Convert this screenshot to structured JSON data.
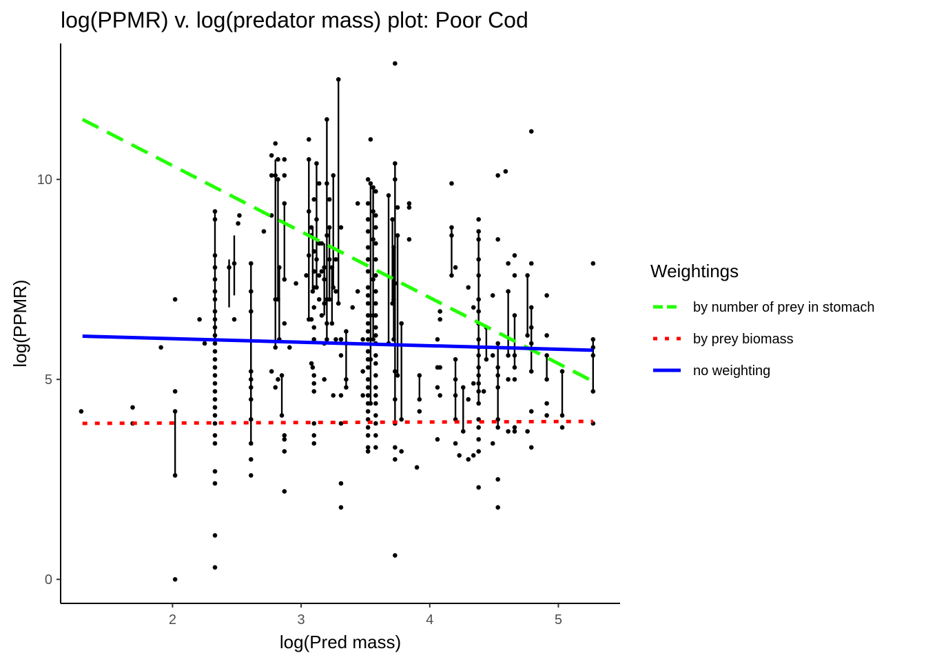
{
  "chart_data": {
    "type": "scatter",
    "title": "log(PPMR) v. log(predator mass) plot: Poor Cod",
    "xlabel": "log(Pred mass)",
    "ylabel": "log(PPMR)",
    "xlim": [
      1.13,
      5.48
    ],
    "ylim": [
      -0.6,
      13.4
    ],
    "x_ticks": [
      2,
      3,
      4,
      5
    ],
    "y_ticks": [
      0,
      5,
      10
    ],
    "grid": false,
    "legend": {
      "title": "Weightings",
      "position": "right",
      "entries": [
        {
          "name": "by number of prey in stomach",
          "color": "#22ff00",
          "dash": "dashed"
        },
        {
          "name": "by prey biomass",
          "color": "#ff0000",
          "dash": "dotted"
        },
        {
          "name": "no weighting",
          "color": "#0000ff",
          "dash": "solid"
        }
      ]
    },
    "lines": [
      {
        "name": "by number of prey in stomach",
        "color": "#22ff00",
        "dash": "dashed",
        "x": [
          1.3,
          5.27
        ],
        "y": [
          11.5,
          4.95
        ]
      },
      {
        "name": "by prey biomass",
        "color": "#ff0000",
        "dash": "dotted",
        "x": [
          1.3,
          5.27
        ],
        "y": [
          3.9,
          3.95
        ]
      },
      {
        "name": "no weighting",
        "color": "#0000ff",
        "dash": "solid",
        "x": [
          1.3,
          5.27
        ],
        "y": [
          6.08,
          5.73
        ]
      }
    ],
    "segments": [
      [
        2.02,
        2.6,
        4.2
      ],
      [
        2.33,
        6.0,
        9.2
      ],
      [
        2.44,
        6.8,
        8.0
      ],
      [
        2.48,
        7.1,
        8.6
      ],
      [
        2.61,
        3.4,
        7.9
      ],
      [
        2.61,
        4.0,
        7.2
      ],
      [
        2.8,
        5.8,
        10.5
      ],
      [
        2.82,
        7.0,
        10.0
      ],
      [
        2.85,
        4.1,
        5.1
      ],
      [
        2.83,
        6.0,
        7.8
      ],
      [
        2.87,
        7.5,
        9.4
      ],
      [
        3.06,
        6.5,
        10.5
      ],
      [
        3.09,
        7.2,
        8.8
      ],
      [
        3.12,
        7.3,
        10.4
      ],
      [
        3.18,
        6.6,
        8.4
      ],
      [
        3.2,
        6.0,
        11.5
      ],
      [
        3.22,
        7.0,
        8.8
      ],
      [
        3.24,
        6.4,
        7.8
      ],
      [
        3.25,
        7.3,
        10.1
      ],
      [
        3.29,
        6.9,
        12.5
      ],
      [
        3.35,
        4.8,
        6.2
      ],
      [
        3.54,
        4.4,
        9.9
      ],
      [
        3.56,
        6.0,
        9.8
      ],
      [
        3.68,
        5.9,
        9.6
      ],
      [
        3.72,
        6.0,
        8.3
      ],
      [
        3.73,
        3.9,
        10.4
      ],
      [
        3.75,
        5.1,
        8.6
      ],
      [
        3.71,
        6.9,
        9.0
      ],
      [
        3.78,
        4.0,
        6.4
      ],
      [
        3.92,
        4.5,
        5.1
      ],
      [
        4.17,
        7.6,
        8.8
      ],
      [
        4.2,
        4.0,
        5.5
      ],
      [
        4.26,
        3.7,
        4.8
      ],
      [
        4.38,
        5.6,
        8.7
      ],
      [
        4.38,
        4.4,
        6.0
      ],
      [
        4.44,
        5.5,
        6.3
      ],
      [
        4.53,
        3.8,
        5.9
      ],
      [
        4.61,
        5.6,
        7.2
      ],
      [
        4.66,
        5.3,
        6.6
      ],
      [
        4.76,
        6.1,
        7.6
      ],
      [
        4.79,
        5.2,
        6.8
      ],
      [
        4.91,
        5.0,
        5.6
      ],
      [
        5.03,
        4.1,
        5.2
      ],
      [
        5.27,
        4.7,
        6.0
      ]
    ],
    "points": [
      [
        1.29,
        4.2
      ],
      [
        1.69,
        4.3
      ],
      [
        1.69,
        3.9
      ],
      [
        1.91,
        5.8
      ],
      [
        2.02,
        0.0
      ],
      [
        2.02,
        2.6
      ],
      [
        2.02,
        4.2
      ],
      [
        2.02,
        4.7
      ],
      [
        2.02,
        7.0
      ],
      [
        2.21,
        6.5
      ],
      [
        2.25,
        5.9
      ],
      [
        2.33,
        0.3
      ],
      [
        2.33,
        1.1
      ],
      [
        2.33,
        2.4
      ],
      [
        2.33,
        2.7
      ],
      [
        2.33,
        3.4
      ],
      [
        2.33,
        3.6
      ],
      [
        2.33,
        3.9
      ],
      [
        2.33,
        4.1
      ],
      [
        2.33,
        4.3
      ],
      [
        2.33,
        4.5
      ],
      [
        2.33,
        4.7
      ],
      [
        2.33,
        4.9
      ],
      [
        2.33,
        5.1
      ],
      [
        2.33,
        5.3
      ],
      [
        2.33,
        5.5
      ],
      [
        2.33,
        5.7
      ],
      [
        2.33,
        5.9
      ],
      [
        2.33,
        6.1
      ],
      [
        2.33,
        6.3
      ],
      [
        2.33,
        6.5
      ],
      [
        2.33,
        6.7
      ],
      [
        2.33,
        7.0
      ],
      [
        2.33,
        7.2
      ],
      [
        2.33,
        7.5
      ],
      [
        2.33,
        7.8
      ],
      [
        2.33,
        8.1
      ],
      [
        2.33,
        9.0
      ],
      [
        2.33,
        9.2
      ],
      [
        2.44,
        7.8
      ],
      [
        2.48,
        6.5
      ],
      [
        2.48,
        7.9
      ],
      [
        2.51,
        8.9
      ],
      [
        2.52,
        9.1
      ],
      [
        2.61,
        2.6
      ],
      [
        2.61,
        3.0
      ],
      [
        2.61,
        3.4
      ],
      [
        2.61,
        4.0
      ],
      [
        2.61,
        4.5
      ],
      [
        2.61,
        4.8
      ],
      [
        2.61,
        5.0
      ],
      [
        2.61,
        5.2
      ],
      [
        2.61,
        6.7
      ],
      [
        2.61,
        7.2
      ],
      [
        2.61,
        7.9
      ],
      [
        2.71,
        8.7
      ],
      [
        2.77,
        5.2
      ],
      [
        2.77,
        9.1
      ],
      [
        2.77,
        10.1
      ],
      [
        2.77,
        10.6
      ],
      [
        2.8,
        4.8
      ],
      [
        2.8,
        5.8
      ],
      [
        2.8,
        7.0
      ],
      [
        2.8,
        10.1
      ],
      [
        2.8,
        10.9
      ],
      [
        2.82,
        5.0
      ],
      [
        2.82,
        7.0
      ],
      [
        2.82,
        10.0
      ],
      [
        2.82,
        10.5
      ],
      [
        2.83,
        6.0
      ],
      [
        2.83,
        7.8
      ],
      [
        2.85,
        4.1
      ],
      [
        2.85,
        5.1
      ],
      [
        2.87,
        2.2
      ],
      [
        2.87,
        3.2
      ],
      [
        2.87,
        3.5
      ],
      [
        2.87,
        3.6
      ],
      [
        2.87,
        6.4
      ],
      [
        2.87,
        7.5
      ],
      [
        2.87,
        9.4
      ],
      [
        2.87,
        10.1
      ],
      [
        2.87,
        10.5
      ],
      [
        2.91,
        5.8
      ],
      [
        2.96,
        7.4
      ],
      [
        3.04,
        7.6
      ],
      [
        3.06,
        6.5
      ],
      [
        3.06,
        8.1
      ],
      [
        3.06,
        9.2
      ],
      [
        3.06,
        10.5
      ],
      [
        3.06,
        11.0
      ],
      [
        3.08,
        5.4
      ],
      [
        3.08,
        6.5
      ],
      [
        3.08,
        8.6
      ],
      [
        3.08,
        8.8
      ],
      [
        3.09,
        5.3
      ],
      [
        3.09,
        7.2
      ],
      [
        3.1,
        3.4
      ],
      [
        3.1,
        3.6
      ],
      [
        3.1,
        3.9
      ],
      [
        3.1,
        4.7
      ],
      [
        3.1,
        4.9
      ],
      [
        3.1,
        5.1
      ],
      [
        3.1,
        6.0
      ],
      [
        3.1,
        6.3
      ],
      [
        3.1,
        6.8
      ],
      [
        3.1,
        7.3
      ],
      [
        3.1,
        7.7
      ],
      [
        3.1,
        8.2
      ],
      [
        3.1,
        9.5
      ],
      [
        3.12,
        7.3
      ],
      [
        3.12,
        8.0
      ],
      [
        3.12,
        9.0
      ],
      [
        3.12,
        10.4
      ],
      [
        3.14,
        7.0
      ],
      [
        3.14,
        7.6
      ],
      [
        3.14,
        8.4
      ],
      [
        3.14,
        9.9
      ],
      [
        3.16,
        6.6
      ],
      [
        3.16,
        7.7
      ],
      [
        3.16,
        8.4
      ],
      [
        3.18,
        5.0
      ],
      [
        3.18,
        5.9
      ],
      [
        3.18,
        6.9
      ],
      [
        3.18,
        7.5
      ],
      [
        3.18,
        7.8
      ],
      [
        3.2,
        6.0
      ],
      [
        3.2,
        6.4
      ],
      [
        3.2,
        7.0
      ],
      [
        3.2,
        8.6
      ],
      [
        3.2,
        9.9
      ],
      [
        3.2,
        11.5
      ],
      [
        3.22,
        7.0
      ],
      [
        3.22,
        8.0
      ],
      [
        3.22,
        8.8
      ],
      [
        3.22,
        9.5
      ],
      [
        3.24,
        6.4
      ],
      [
        3.24,
        7.8
      ],
      [
        3.25,
        4.6
      ],
      [
        3.25,
        7.3
      ],
      [
        3.25,
        10.1
      ],
      [
        3.27,
        6.0
      ],
      [
        3.27,
        7.2
      ],
      [
        3.27,
        8.0
      ],
      [
        3.29,
        6.9
      ],
      [
        3.29,
        12.5
      ],
      [
        3.31,
        1.8
      ],
      [
        3.31,
        2.4
      ],
      [
        3.31,
        3.9
      ],
      [
        3.31,
        4.6
      ],
      [
        3.31,
        5.6
      ],
      [
        3.31,
        6.0
      ],
      [
        3.31,
        8.8
      ],
      [
        3.35,
        4.8
      ],
      [
        3.35,
        5.0
      ],
      [
        3.35,
        5.9
      ],
      [
        3.35,
        6.2
      ],
      [
        3.4,
        6.8
      ],
      [
        3.44,
        7.2
      ],
      [
        3.44,
        9.4
      ],
      [
        3.48,
        4.6
      ],
      [
        3.48,
        5.2
      ],
      [
        3.48,
        6.0
      ],
      [
        3.52,
        3.2
      ],
      [
        3.52,
        3.3
      ],
      [
        3.52,
        3.6
      ],
      [
        3.52,
        3.8
      ],
      [
        3.52,
        4.0
      ],
      [
        3.52,
        4.2
      ],
      [
        3.52,
        4.4
      ],
      [
        3.52,
        4.6
      ],
      [
        3.52,
        4.8
      ],
      [
        3.52,
        5.0
      ],
      [
        3.52,
        5.3
      ],
      [
        3.52,
        5.5
      ],
      [
        3.52,
        5.7
      ],
      [
        3.52,
        6.0
      ],
      [
        3.52,
        6.2
      ],
      [
        3.52,
        6.4
      ],
      [
        3.52,
        6.6
      ],
      [
        3.52,
        6.9
      ],
      [
        3.52,
        7.1
      ],
      [
        3.52,
        7.3
      ],
      [
        3.52,
        7.7
      ],
      [
        3.52,
        8.0
      ],
      [
        3.52,
        8.3
      ],
      [
        3.52,
        8.7
      ],
      [
        3.52,
        9.0
      ],
      [
        3.52,
        9.4
      ],
      [
        3.52,
        10.0
      ],
      [
        3.54,
        4.4
      ],
      [
        3.54,
        5.5
      ],
      [
        3.54,
        9.9
      ],
      [
        3.54,
        11.0
      ],
      [
        3.56,
        6.0
      ],
      [
        3.56,
        6.6
      ],
      [
        3.56,
        7.5
      ],
      [
        3.56,
        8.5
      ],
      [
        3.56,
        9.2
      ],
      [
        3.56,
        9.8
      ],
      [
        3.58,
        3.3
      ],
      [
        3.58,
        3.6
      ],
      [
        3.58,
        3.9
      ],
      [
        3.58,
        4.1
      ],
      [
        3.58,
        4.4
      ],
      [
        3.58,
        4.6
      ],
      [
        3.58,
        4.8
      ],
      [
        3.58,
        5.1
      ],
      [
        3.58,
        5.4
      ],
      [
        3.58,
        5.6
      ],
      [
        3.58,
        5.9
      ],
      [
        3.58,
        6.1
      ],
      [
        3.58,
        6.3
      ],
      [
        3.58,
        6.6
      ],
      [
        3.58,
        6.9
      ],
      [
        3.58,
        7.2
      ],
      [
        3.58,
        7.6
      ],
      [
        3.58,
        8.0
      ],
      [
        3.58,
        8.4
      ],
      [
        3.58,
        8.8
      ],
      [
        3.58,
        9.1
      ],
      [
        3.58,
        9.7
      ],
      [
        3.68,
        5.9
      ],
      [
        3.68,
        9.6
      ],
      [
        3.71,
        6.9
      ],
      [
        3.71,
        9.0
      ],
      [
        3.72,
        6.0
      ],
      [
        3.72,
        7.0
      ],
      [
        3.72,
        8.3
      ],
      [
        3.73,
        0.6
      ],
      [
        3.73,
        3.0
      ],
      [
        3.73,
        3.3
      ],
      [
        3.73,
        3.9
      ],
      [
        3.73,
        4.5
      ],
      [
        3.73,
        5.2
      ],
      [
        3.73,
        7.4
      ],
      [
        3.73,
        10.0
      ],
      [
        3.73,
        10.4
      ],
      [
        3.73,
        12.9
      ],
      [
        3.75,
        5.1
      ],
      [
        3.75,
        8.6
      ],
      [
        3.75,
        9.3
      ],
      [
        3.78,
        3.2
      ],
      [
        3.78,
        4.0
      ],
      [
        3.78,
        6.4
      ],
      [
        3.84,
        8.5
      ],
      [
        3.84,
        9.3
      ],
      [
        3.84,
        9.4
      ],
      [
        3.9,
        2.8
      ],
      [
        3.92,
        4.2
      ],
      [
        3.92,
        4.5
      ],
      [
        3.92,
        5.1
      ],
      [
        4.06,
        3.5
      ],
      [
        4.06,
        4.8
      ],
      [
        4.06,
        5.3
      ],
      [
        4.06,
        6.0
      ],
      [
        4.08,
        4.6
      ],
      [
        4.08,
        5.3
      ],
      [
        4.08,
        6.5
      ],
      [
        4.08,
        6.7
      ],
      [
        4.17,
        7.6
      ],
      [
        4.17,
        8.6
      ],
      [
        4.17,
        8.8
      ],
      [
        4.17,
        9.9
      ],
      [
        4.2,
        3.4
      ],
      [
        4.2,
        4.0
      ],
      [
        4.2,
        4.6
      ],
      [
        4.2,
        5.0
      ],
      [
        4.2,
        5.5
      ],
      [
        4.2,
        7.8
      ],
      [
        4.23,
        3.1
      ],
      [
        4.26,
        3.7
      ],
      [
        4.26,
        4.8
      ],
      [
        4.3,
        3.0
      ],
      [
        4.3,
        4.5
      ],
      [
        4.3,
        7.3
      ],
      [
        4.34,
        3.1
      ],
      [
        4.34,
        4.9
      ],
      [
        4.34,
        6.8
      ],
      [
        4.38,
        2.3
      ],
      [
        4.38,
        3.2
      ],
      [
        4.38,
        3.5
      ],
      [
        4.38,
        3.8
      ],
      [
        4.38,
        4.0
      ],
      [
        4.38,
        4.4
      ],
      [
        4.38,
        4.7
      ],
      [
        4.38,
        4.9
      ],
      [
        4.38,
        5.1
      ],
      [
        4.38,
        5.3
      ],
      [
        4.38,
        5.6
      ],
      [
        4.38,
        5.8
      ],
      [
        4.38,
        6.0
      ],
      [
        4.38,
        6.4
      ],
      [
        4.38,
        6.7
      ],
      [
        4.38,
        7.0
      ],
      [
        4.38,
        7.6
      ],
      [
        4.38,
        8.0
      ],
      [
        4.38,
        8.5
      ],
      [
        4.38,
        8.7
      ],
      [
        4.38,
        9.0
      ],
      [
        4.42,
        4.7
      ],
      [
        4.44,
        5.5
      ],
      [
        4.44,
        6.3
      ],
      [
        4.49,
        3.4
      ],
      [
        4.49,
        5.6
      ],
      [
        4.49,
        7.1
      ],
      [
        4.53,
        1.8
      ],
      [
        4.53,
        2.5
      ],
      [
        4.53,
        3.8
      ],
      [
        4.53,
        4.0
      ],
      [
        4.53,
        4.8
      ],
      [
        4.53,
        5.1
      ],
      [
        4.53,
        5.3
      ],
      [
        4.53,
        5.9
      ],
      [
        4.53,
        8.5
      ],
      [
        4.53,
        10.1
      ],
      [
        4.59,
        10.2
      ],
      [
        4.61,
        3.7
      ],
      [
        4.61,
        5.0
      ],
      [
        4.61,
        5.6
      ],
      [
        4.61,
        7.2
      ],
      [
        4.61,
        7.9
      ],
      [
        4.66,
        3.7
      ],
      [
        4.66,
        3.8
      ],
      [
        4.66,
        5.0
      ],
      [
        4.66,
        5.3
      ],
      [
        4.66,
        5.6
      ],
      [
        4.66,
        6.6
      ],
      [
        4.66,
        7.6
      ],
      [
        4.66,
        8.1
      ],
      [
        4.76,
        3.7
      ],
      [
        4.76,
        6.1
      ],
      [
        4.76,
        7.6
      ],
      [
        4.79,
        3.3
      ],
      [
        4.79,
        4.2
      ],
      [
        4.79,
        5.2
      ],
      [
        4.79,
        5.9
      ],
      [
        4.79,
        6.3
      ],
      [
        4.79,
        6.8
      ],
      [
        4.79,
        7.9
      ],
      [
        4.79,
        11.2
      ],
      [
        4.91,
        4.1
      ],
      [
        4.91,
        4.4
      ],
      [
        4.91,
        5.0
      ],
      [
        4.91,
        5.6
      ],
      [
        4.91,
        6.1
      ],
      [
        4.91,
        7.1
      ],
      [
        5.03,
        3.8
      ],
      [
        5.03,
        4.1
      ],
      [
        5.03,
        5.2
      ],
      [
        5.27,
        3.9
      ],
      [
        5.27,
        4.7
      ],
      [
        5.27,
        5.6
      ],
      [
        5.27,
        5.8
      ],
      [
        5.27,
        6.0
      ],
      [
        5.27,
        7.9
      ]
    ]
  }
}
